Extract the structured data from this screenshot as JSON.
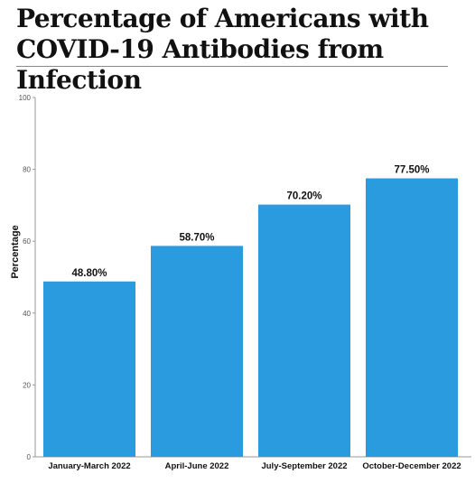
{
  "chart_data": {
    "type": "bar",
    "title": "Percentage of Americans with COVID-19 Antibodies from Infection",
    "ylabel": "Percentage",
    "xlabel": "",
    "categories": [
      "January-March 2022",
      "April-June 2022",
      "July-September 2022",
      "October-December 2022"
    ],
    "values": [
      48.8,
      58.7,
      70.2,
      77.5
    ],
    "data_labels": [
      "48.80%",
      "58.70%",
      "70.20%",
      "77.50%"
    ],
    "ylim": [
      0,
      100
    ],
    "yticks": [
      "0",
      "20",
      "40",
      "60",
      "80",
      "100"
    ],
    "ytick_values": [
      0,
      20,
      40,
      60,
      80,
      100
    ],
    "grid": false,
    "legend": "none",
    "bar_color": "#2b9be0"
  }
}
